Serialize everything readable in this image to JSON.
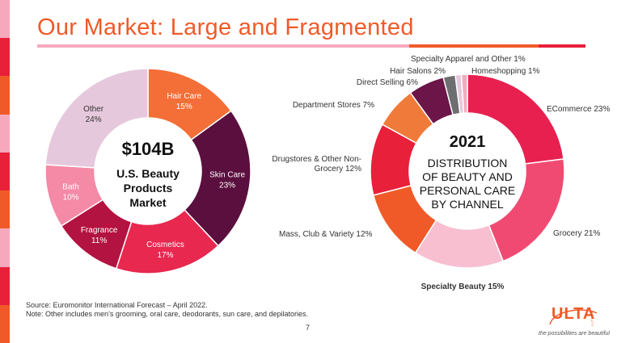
{
  "slide": {
    "title": "Our Market: Large and Fragmented",
    "page_number": "7",
    "source_line": "Source:  Euromonitor International Forecast – April 2022.",
    "note_line": "Note: Other includes men’s grooming, oral care, deodorants, sun care, and depilatories.",
    "logo_text": "ULTA",
    "logo_sub": "BEAUTY",
    "tagline": "the possibilities are beautiful"
  },
  "colors": {
    "accent_orange": "#f05a28",
    "title_rule": [
      "#f6a9bd",
      "#f05a28",
      "#e8203a"
    ],
    "side_strip": [
      "#f6a9bd",
      "#e8203a",
      "#f05a28",
      "#f6a9bd",
      "#e8203a",
      "#f05a28",
      "#f6a9bd",
      "#e8203a",
      "#f05a28"
    ]
  },
  "chart_data": [
    {
      "type": "pie",
      "donut": true,
      "center_text": {
        "value": "$104B",
        "lines": [
          "U.S. Beauty",
          "Products",
          "Market"
        ]
      },
      "slices": [
        {
          "label": "Hair Care",
          "pct_text": "15%",
          "value": 15,
          "color": "#f36f37"
        },
        {
          "label": "Skin Care",
          "pct_text": "23%",
          "value": 23,
          "color": "#5b0f3e"
        },
        {
          "label": "Cosmetics",
          "pct_text": "17%",
          "value": 17,
          "color": "#e8284f"
        },
        {
          "label": "Fragrance",
          "pct_text": "11%",
          "value": 11,
          "color": "#b31340"
        },
        {
          "label": "Bath",
          "pct_text": "10%",
          "value": 10,
          "color": "#f48aa6"
        },
        {
          "label": "Other",
          "pct_text": "24%",
          "value": 24,
          "color": "#e6c8dc"
        }
      ]
    },
    {
      "type": "pie",
      "donut": true,
      "center_text": {
        "value": "2021",
        "lines": [
          "DISTRIBUTION",
          "OF BEAUTY AND",
          "PERSONAL CARE",
          "BY CHANNEL"
        ]
      },
      "slices": [
        {
          "label": "ECommerce 23%",
          "value": 23,
          "color": "#e8204f"
        },
        {
          "label": "Grocery 21%",
          "value": 21,
          "color": "#f04a72"
        },
        {
          "label": "Specialty Beauty 15%",
          "value": 15,
          "color": "#f7bfd0",
          "bold": true
        },
        {
          "label": "Mass, Club & Variety  12%",
          "value": 12,
          "color": "#f05a28"
        },
        {
          "label": "Drugstores & Other Non-Grocery 12%",
          "label_lines": [
            "Drugstores & Other Non-",
            "Grocery 12%"
          ],
          "value": 12,
          "color": "#e8203a"
        },
        {
          "label": "Department Stores 7%",
          "value": 7,
          "color": "#f07a3a"
        },
        {
          "label": "Direct Selling 6%",
          "value": 6,
          "color": "#6b1548"
        },
        {
          "label": "Hair Salons 2%",
          "value": 2,
          "color": "#6d6e70"
        },
        {
          "label": "Specialty Apparel and Other 1%",
          "value": 1,
          "color": "#e6c8dc"
        },
        {
          "label": "Homeshopping 1%",
          "value": 1,
          "color": "#f6a9bd"
        }
      ]
    }
  ]
}
